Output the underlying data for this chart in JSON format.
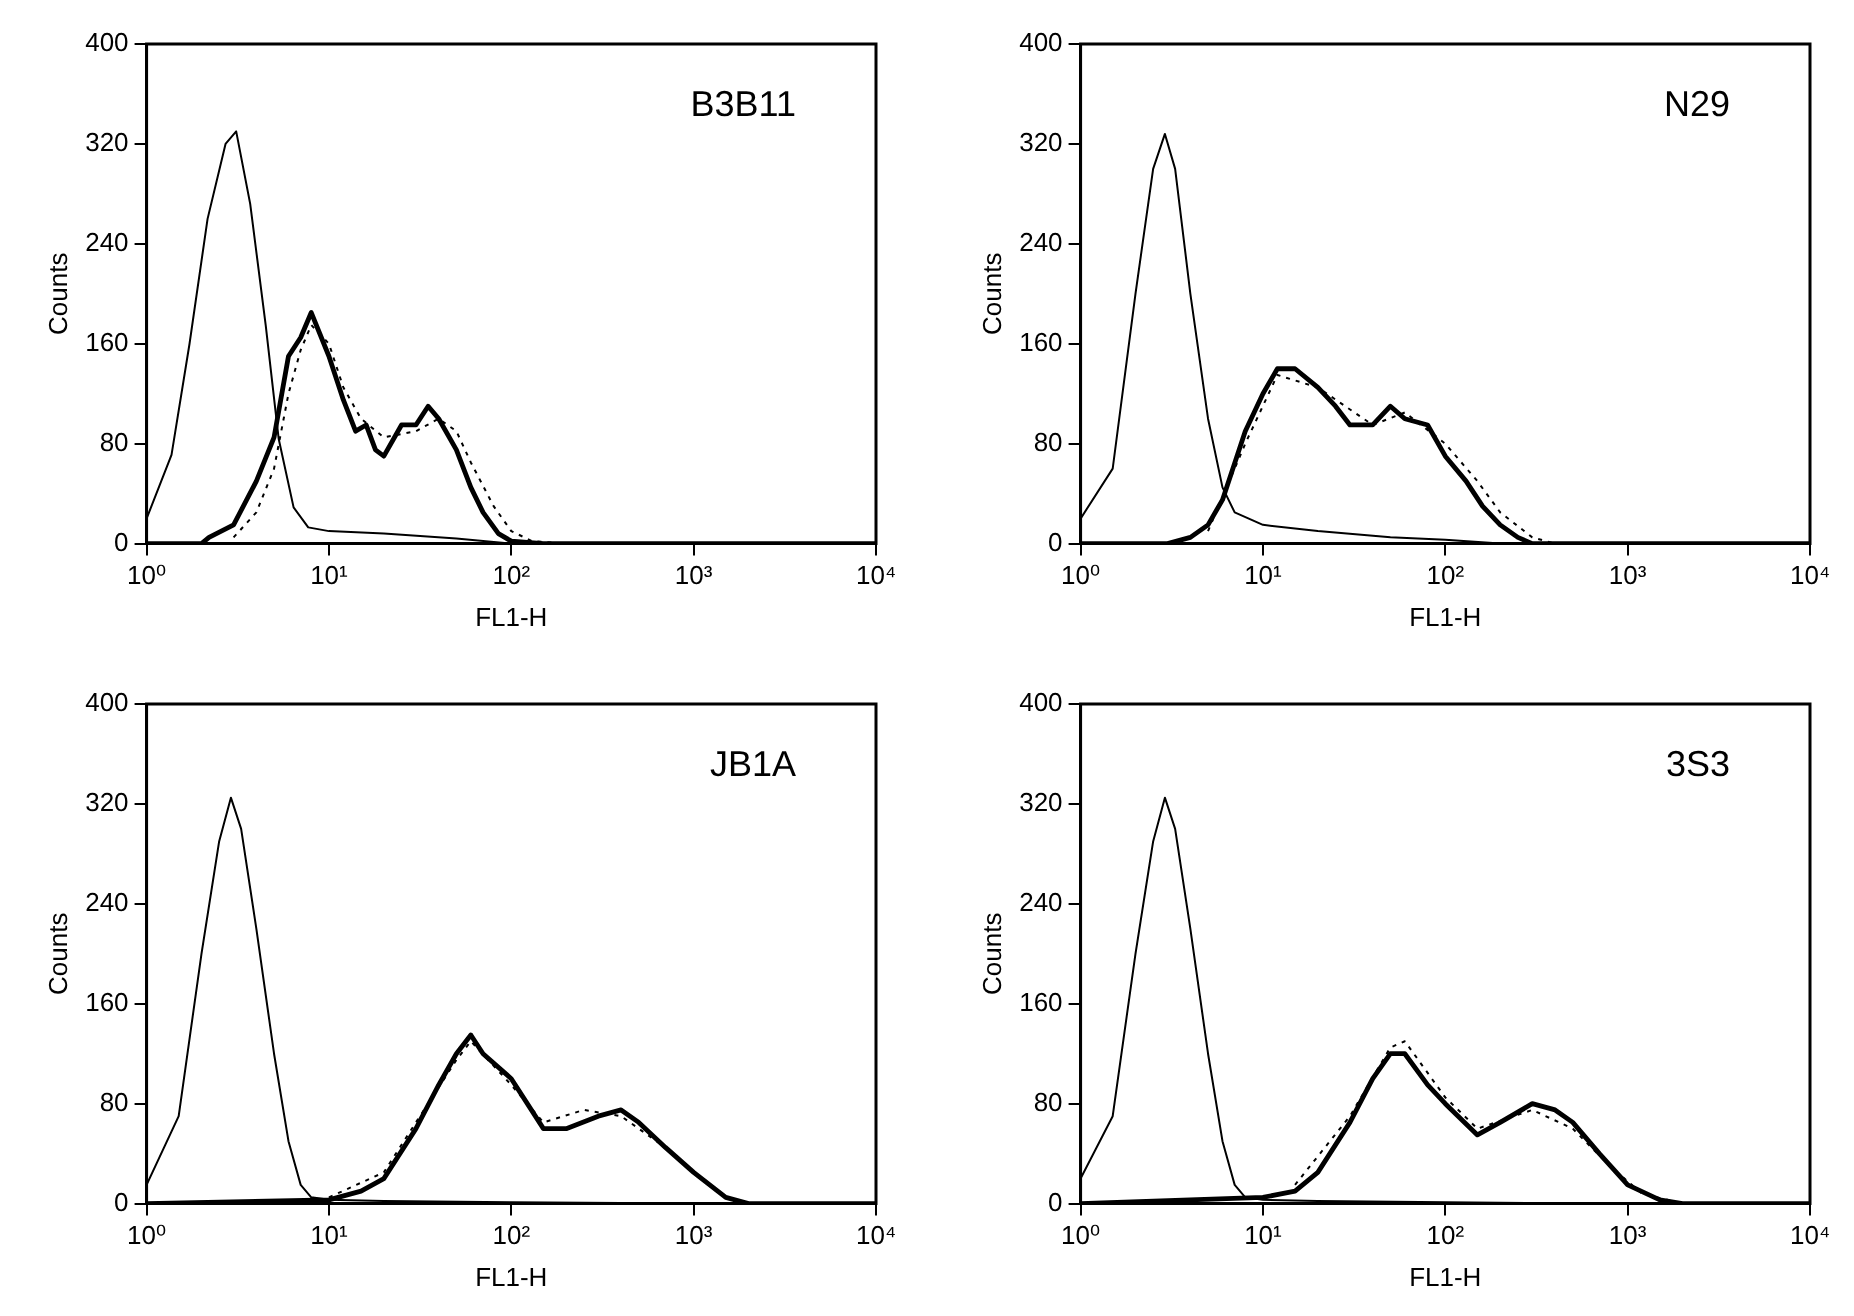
{
  "chart_data": [
    {
      "type": "line",
      "annotations": [
        "B3B11"
      ],
      "xlabel": "FL1-H",
      "ylabel": "Counts",
      "log": "x",
      "grid": false,
      "legend": false,
      "marker": "none",
      "xlim": [
        1,
        10000
      ],
      "xticks": [
        {
          "value": 1,
          "label": "10⁰"
        },
        {
          "value": 10,
          "label": "10¹"
        },
        {
          "value": 100,
          "label": "10²"
        },
        {
          "value": 1000,
          "label": "10³"
        },
        {
          "value": 10000,
          "label": "10⁴"
        }
      ],
      "ylim": [
        0,
        400
      ],
      "yticks": [
        0,
        80,
        160,
        240,
        320,
        400
      ],
      "series": [
        {
          "color": "#000000",
          "line_style": "solid",
          "x": [
            1,
            1.37,
            1.72,
            2.16,
            2.71,
            3.1,
            3.7,
            4.5,
            5.3,
            6.4,
            7.7,
            10,
            20,
            50,
            100,
            10000
          ],
          "values": [
            20,
            71,
            160,
            260,
            320,
            330,
            272,
            175,
            84,
            29,
            13,
            10,
            8,
            4,
            0,
            0
          ]
        },
        {
          "color": "#000000",
          "line_style": "solid",
          "x": [
            1,
            2,
            2.2,
            3,
            4,
            5,
            6,
            7,
            8,
            10,
            12,
            14,
            16,
            18,
            20,
            25,
            30,
            35,
            40,
            50,
            60,
            70,
            85,
            100,
            150,
            10000
          ],
          "values": [
            0,
            0,
            5,
            15,
            50,
            85,
            150,
            165,
            185,
            150,
            115,
            90,
            95,
            75,
            70,
            95,
            95,
            110,
            100,
            75,
            45,
            25,
            8,
            2,
            0,
            0
          ]
        },
        {
          "color": "#000000",
          "line_style": "dotted",
          "x": [
            3,
            4,
            5,
            6,
            7,
            8,
            10,
            12,
            15,
            20,
            30,
            40,
            50,
            60,
            80,
            100,
            130,
            200,
            10000
          ],
          "values": [
            5,
            25,
            60,
            120,
            155,
            175,
            160,
            125,
            100,
            85,
            90,
            100,
            90,
            65,
            30,
            10,
            2,
            0,
            0
          ]
        }
      ]
    },
    {
      "type": "line",
      "annotations": [
        "N29"
      ],
      "xlabel": "FL1-H",
      "ylabel": "Counts",
      "log": "x",
      "grid": false,
      "legend": false,
      "marker": "none",
      "xlim": [
        1,
        10000
      ],
      "xticks": [
        {
          "value": 1,
          "label": "10⁰"
        },
        {
          "value": 10,
          "label": "10¹"
        },
        {
          "value": 100,
          "label": "10²"
        },
        {
          "value": 1000,
          "label": "10³"
        },
        {
          "value": 10000,
          "label": "10⁴"
        }
      ],
      "ylim": [
        0,
        400
      ],
      "yticks": [
        0,
        80,
        160,
        240,
        320,
        400
      ],
      "series": [
        {
          "color": "#000000",
          "line_style": "solid",
          "x": [
            1,
            1.5,
            2,
            2.5,
            2.9,
            3.3,
            4,
            5,
            6,
            7,
            10,
            20,
            50,
            100,
            200,
            10000
          ],
          "values": [
            20,
            60,
            200,
            300,
            328,
            300,
            200,
            100,
            45,
            25,
            15,
            10,
            5,
            3,
            0,
            0
          ]
        },
        {
          "color": "#000000",
          "line_style": "solid",
          "x": [
            1,
            3,
            4,
            5,
            6,
            8,
            10,
            12,
            15,
            20,
            25,
            30,
            40,
            50,
            60,
            80,
            100,
            130,
            160,
            200,
            250,
            300,
            10000
          ],
          "values": [
            0,
            0,
            5,
            15,
            35,
            90,
            120,
            140,
            140,
            125,
            110,
            95,
            95,
            110,
            100,
            95,
            70,
            50,
            30,
            15,
            5,
            0,
            0
          ]
        },
        {
          "color": "#000000",
          "line_style": "dotted",
          "x": [
            5,
            8,
            12,
            20,
            40,
            60,
            100,
            150,
            200,
            300,
            400,
            10000
          ],
          "values": [
            10,
            80,
            135,
            125,
            95,
            105,
            80,
            50,
            25,
            5,
            0,
            0
          ]
        }
      ]
    },
    {
      "type": "line",
      "annotations": [
        "JB1A"
      ],
      "xlabel": "FL1-H",
      "ylabel": "Counts",
      "log": "x",
      "grid": false,
      "legend": false,
      "marker": "none",
      "xlim": [
        1,
        10000
      ],
      "xticks": [
        {
          "value": 1,
          "label": "10⁰"
        },
        {
          "value": 10,
          "label": "10¹"
        },
        {
          "value": 100,
          "label": "10²"
        },
        {
          "value": 1000,
          "label": "10³"
        },
        {
          "value": 10000,
          "label": "10⁴"
        }
      ],
      "ylim": [
        0,
        400
      ],
      "yticks": [
        0,
        80,
        160,
        240,
        320,
        400
      ],
      "series": [
        {
          "color": "#000000",
          "line_style": "solid",
          "x": [
            1,
            1.5,
            2,
            2.5,
            2.9,
            3.3,
            4,
            5,
            6,
            7,
            8,
            10,
            20,
            100,
            1000,
            10000
          ],
          "values": [
            15,
            70,
            200,
            290,
            325,
            300,
            220,
            120,
            50,
            15,
            5,
            3,
            2,
            1,
            0,
            0
          ]
        },
        {
          "color": "#000000",
          "line_style": "solid",
          "x": [
            1,
            10,
            15,
            20,
            30,
            40,
            50,
            60,
            70,
            100,
            150,
            200,
            300,
            400,
            500,
            700,
            1000,
            1500,
            2000,
            10000
          ],
          "values": [
            0,
            3,
            10,
            20,
            60,
            95,
            120,
            135,
            120,
            100,
            60,
            60,
            70,
            75,
            65,
            45,
            25,
            5,
            0,
            0
          ]
        },
        {
          "color": "#000000",
          "line_style": "dotted",
          "x": [
            10,
            20,
            30,
            50,
            60,
            100,
            150,
            250,
            400,
            700,
            1000,
            1500,
            2000,
            10000
          ],
          "values": [
            5,
            25,
            65,
            115,
            130,
            95,
            65,
            75,
            70,
            45,
            25,
            5,
            0,
            0
          ]
        }
      ]
    },
    {
      "type": "line",
      "annotations": [
        "3S3"
      ],
      "xlabel": "FL1-H",
      "ylabel": "Counts",
      "log": "x",
      "grid": false,
      "legend": false,
      "marker": "none",
      "xlim": [
        1,
        10000
      ],
      "xticks": [
        {
          "value": 1,
          "label": "10⁰"
        },
        {
          "value": 10,
          "label": "10¹"
        },
        {
          "value": 100,
          "label": "10²"
        },
        {
          "value": 1000,
          "label": "10³"
        },
        {
          "value": 10000,
          "label": "10⁴"
        }
      ],
      "ylim": [
        0,
        400
      ],
      "yticks": [
        0,
        80,
        160,
        240,
        320,
        400
      ],
      "series": [
        {
          "color": "#000000",
          "line_style": "solid",
          "x": [
            1,
            1.5,
            2,
            2.5,
            2.9,
            3.3,
            4,
            5,
            6,
            7,
            8,
            10,
            20,
            100,
            1000,
            10000
          ],
          "values": [
            20,
            70,
            200,
            290,
            325,
            300,
            220,
            120,
            50,
            15,
            5,
            3,
            2,
            1,
            0,
            0
          ]
        },
        {
          "color": "#000000",
          "line_style": "solid",
          "x": [
            1,
            10,
            15,
            20,
            30,
            40,
            50,
            60,
            80,
            100,
            150,
            200,
            300,
            400,
            500,
            700,
            1000,
            1500,
            2000,
            10000
          ],
          "values": [
            0,
            5,
            10,
            25,
            65,
            100,
            120,
            120,
            95,
            80,
            55,
            65,
            80,
            75,
            65,
            40,
            15,
            3,
            0,
            0
          ]
        },
        {
          "color": "#000000",
          "line_style": "dotted",
          "x": [
            15,
            30,
            50,
            60,
            100,
            150,
            300,
            500,
            800,
            1200,
            2000,
            10000
          ],
          "values": [
            15,
            70,
            125,
            130,
            85,
            60,
            75,
            60,
            30,
            8,
            0,
            0
          ]
        }
      ]
    }
  ]
}
